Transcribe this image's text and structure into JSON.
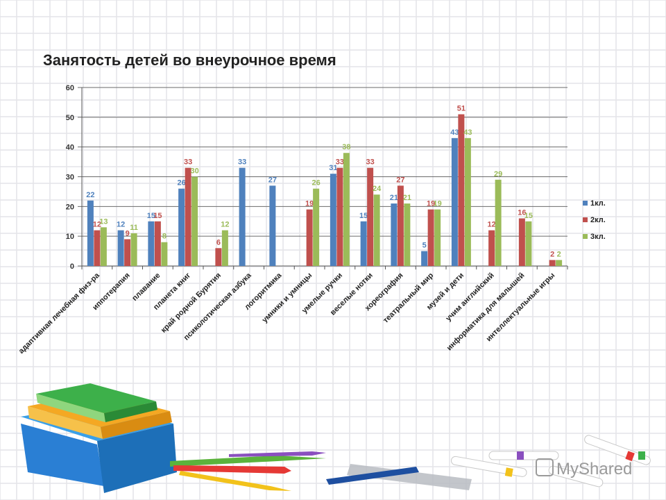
{
  "colors": {
    "series1": "#4f81bd",
    "series2": "#c0504d",
    "series3": "#9bbb59",
    "grid_background": "#e4e4e8",
    "plot_gridline": "#6a6a6a"
  },
  "watermark": "MyShared",
  "chart_data": {
    "type": "bar",
    "title": "Занятость детей во внеурочное время",
    "xlabel": "",
    "ylabel": "",
    "ylim": [
      0,
      60
    ],
    "yticks": [
      0,
      10,
      20,
      30,
      40,
      50,
      60
    ],
    "grid": true,
    "legend_position": "right",
    "categories": [
      "адаптивная лечебная физ-ра",
      "иппотерапия",
      "плавание",
      "планета книг",
      "край родной Бурятия",
      "псиколотическая азбука",
      "логоритмика",
      "умники и умницы",
      "умелые ручки",
      "веселые нотки",
      "хореография",
      "театральный мир",
      "музей и дети",
      "учим английский",
      "информатика для малышей",
      "интеллектуальные игры"
    ],
    "series": [
      {
        "name": "1кл.",
        "values": [
          22,
          12,
          15,
          26,
          null,
          33,
          27,
          null,
          31,
          15,
          21,
          5,
          43,
          null,
          null,
          null
        ]
      },
      {
        "name": "2кл.",
        "values": [
          12,
          9,
          15,
          33,
          6,
          null,
          null,
          19,
          33,
          33,
          27,
          19,
          51,
          12,
          16,
          2
        ]
      },
      {
        "name": "3кл.",
        "values": [
          13,
          11,
          8,
          30,
          12,
          null,
          null,
          26,
          38,
          24,
          21,
          19,
          43,
          29,
          15,
          2
        ]
      }
    ]
  }
}
